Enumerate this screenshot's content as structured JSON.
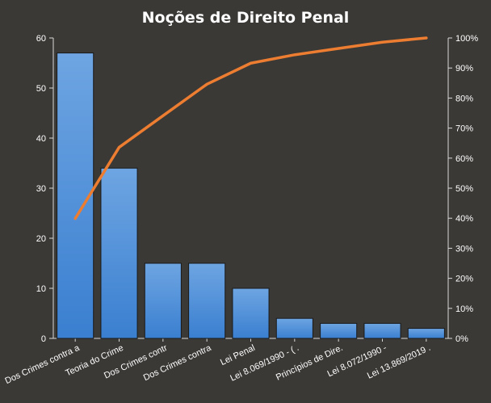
{
  "chart_data": {
    "type": "bar",
    "title": "Noções  de  Direito  Penal",
    "categories": [
      "Dos Crimes contra a",
      "Teoria do Crime",
      "Dos Crimes contr",
      "Dos Crimes contra",
      "Lei Penal",
      "Lei 8.069/1990 - ( .",
      "Princípios de Dire.",
      "Lei 8.072/1990 -",
      "Lei 13.869/2019 ."
    ],
    "series": [
      {
        "type": "bar",
        "values": [
          57,
          34,
          15,
          15,
          10,
          4,
          3,
          3,
          2
        ]
      },
      {
        "type": "line",
        "axis": "right",
        "values": [
          39.9,
          63.6,
          74.1,
          84.6,
          91.6,
          94.4,
          96.5,
          98.6,
          100
        ]
      }
    ],
    "y_left": {
      "ylim": [
        0,
        60
      ],
      "ticks": [
        "0",
        "10",
        "20",
        "30",
        "40",
        "50",
        "60"
      ]
    },
    "y_right": {
      "ylim": [
        0,
        100
      ],
      "ticks": [
        "0%",
        "10%",
        "20%",
        "30%",
        "40%",
        "50%",
        "60%",
        "70%",
        "80%",
        "90%",
        "100%"
      ]
    },
    "grid": false,
    "legend": "none",
    "colors": {
      "background": "#3b3936",
      "bar_fill_top": "#6ea5e2",
      "bar_fill_bottom": "#3a7fd0",
      "bar_stroke": "#1a1a1a",
      "line": "#ed7d31",
      "text": "#ffffff",
      "axis": "#d9d9d9"
    }
  }
}
